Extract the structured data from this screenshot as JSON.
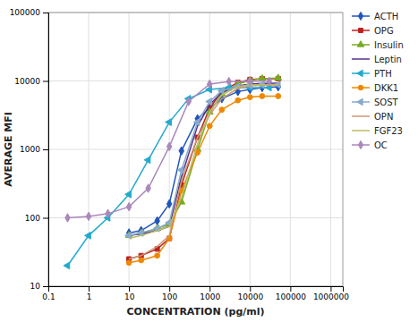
{
  "chart_data": {
    "type": "line",
    "x_label": "CONCENTRATION (pg/ml)",
    "y_label": "AVERAGE MFI",
    "log": true,
    "grid": true,
    "legend": "right",
    "xlim": [
      0.1,
      2000000
    ],
    "ylim": [
      10,
      100000
    ],
    "xticks": [
      0.1,
      1,
      10,
      100,
      1000,
      10000,
      100000,
      1000000
    ],
    "yticks": [
      10,
      100,
      1000,
      10000,
      100000
    ],
    "series": [
      {
        "name": "ACTH",
        "color": "#2255BB",
        "marker": "diamond",
        "x": [
          10,
          20,
          50,
          100,
          200,
          500,
          1000,
          2000,
          5000,
          10000,
          20000,
          50000
        ],
        "values": [
          60,
          65,
          90,
          160,
          950,
          2800,
          4000,
          5500,
          7000,
          7500,
          8000,
          8200
        ]
      },
      {
        "name": "OPG",
        "color": "#BB2222",
        "marker": "square",
        "x": [
          10,
          20,
          50,
          100,
          200,
          500,
          1000,
          2000,
          5000,
          10000,
          20000,
          50000
        ],
        "values": [
          25,
          28,
          35,
          50,
          300,
          1500,
          4000,
          7000,
          9500,
          10500,
          10800,
          10800
        ]
      },
      {
        "name": "Insulin",
        "color": "#77AA22",
        "marker": "triangle-up",
        "x": [
          10,
          20,
          50,
          100,
          200,
          500,
          1000,
          2000,
          5000,
          10000,
          20000,
          50000
        ],
        "values": [
          55,
          60,
          70,
          80,
          170,
          1000,
          3500,
          6500,
          9000,
          10200,
          10800,
          11000
        ]
      },
      {
        "name": "Leptin",
        "color": "#553388",
        "x": [
          10,
          20,
          50,
          100,
          200,
          500,
          1000,
          2000,
          5000,
          10000,
          20000,
          50000
        ],
        "values": [
          55,
          58,
          65,
          75,
          400,
          2200,
          4500,
          6800,
          8500,
          9000,
          9200,
          9300
        ]
      },
      {
        "name": "PTH",
        "color": "#22AACC",
        "marker": "triangle-left",
        "x": [
          0.3,
          1,
          3,
          10,
          30,
          100,
          300,
          1000,
          3000,
          10000,
          30000
        ],
        "values": [
          20,
          55,
          100,
          220,
          700,
          2500,
          5500,
          7500,
          8000,
          8000,
          8000
        ]
      },
      {
        "name": "DKK1",
        "color": "#EE8800",
        "marker": "circle",
        "x": [
          10,
          20,
          50,
          100,
          200,
          500,
          1000,
          2000,
          5000,
          10000,
          20000,
          50000
        ],
        "values": [
          22,
          24,
          28,
          50,
          250,
          900,
          2200,
          3800,
          5200,
          5800,
          6000,
          6000
        ]
      },
      {
        "name": "SOST",
        "color": "#88AACC",
        "marker": "triangle-left",
        "x": [
          10,
          20,
          50,
          100,
          200,
          500,
          1000,
          2000,
          5000,
          10000,
          20000,
          50000
        ],
        "values": [
          55,
          60,
          70,
          85,
          500,
          2500,
          5000,
          7200,
          8300,
          8700,
          8800,
          8800
        ]
      },
      {
        "name": "OPN",
        "color": "#CC9977",
        "x": [
          10,
          20,
          50,
          100,
          200,
          500,
          1000,
          2000,
          5000,
          10000,
          20000,
          50000
        ],
        "values": [
          25,
          28,
          38,
          55,
          350,
          1500,
          3200,
          5500,
          7800,
          8500,
          8700,
          8700
        ]
      },
      {
        "name": "FGF23",
        "color": "#BBBB66",
        "x": [
          10,
          20,
          50,
          100,
          200,
          500,
          1000,
          2000,
          5000,
          10000,
          20000,
          50000
        ],
        "values": [
          50,
          55,
          65,
          75,
          200,
          1200,
          3500,
          6200,
          8300,
          8700,
          8800,
          8800
        ]
      },
      {
        "name": "OC",
        "color": "#AA88BB",
        "marker": "diamond",
        "x": [
          0.3,
          1,
          3,
          10,
          30,
          100,
          300,
          1000,
          3000,
          10000,
          30000
        ],
        "values": [
          100,
          105,
          115,
          145,
          270,
          1100,
          5000,
          9000,
          9800,
          9900,
          9900
        ]
      }
    ]
  }
}
